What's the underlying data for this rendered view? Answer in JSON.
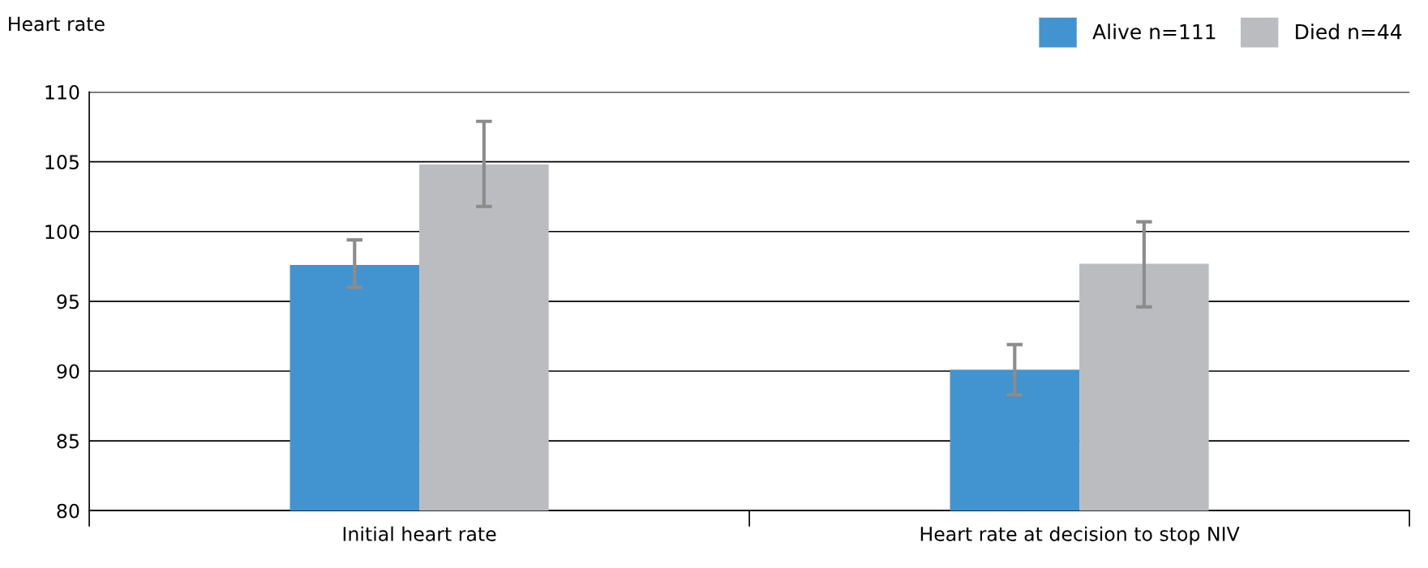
{
  "chart_data": {
    "type": "bar",
    "ylabel": "Heart rate",
    "categories": [
      "Initial heart rate",
      "Heart rate at decision to stop NIV"
    ],
    "series": [
      {
        "name": "Alive n=111",
        "color": "#4194d0",
        "values": [
          97.6,
          90.1
        ],
        "errors": [
          [
            96.0,
            99.4
          ],
          [
            88.3,
            91.9
          ]
        ]
      },
      {
        "name": "Died n=44",
        "color": "#bbbcc0",
        "values": [
          104.8,
          97.7
        ],
        "errors": [
          [
            101.8,
            107.9
          ],
          [
            94.6,
            100.7
          ]
        ]
      }
    ],
    "ylim": [
      80,
      110
    ],
    "yticks": [
      80,
      85,
      90,
      95,
      100,
      105,
      110
    ],
    "grid": "y",
    "legend": "top right"
  }
}
